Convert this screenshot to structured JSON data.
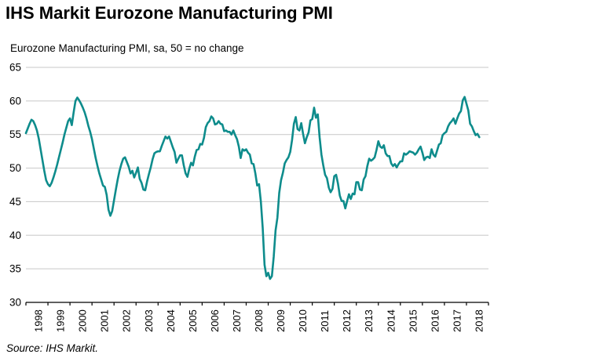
{
  "header": {
    "title": "IHS Markit Eurozone Manufacturing PMI"
  },
  "chart": {
    "subtitle": "Eurozone Manufacturing PMI, sa, 50 = no change"
  },
  "chart_data": {
    "type": "line",
    "title": "Eurozone Manufacturing PMI, sa, 50 = no change",
    "xlabel": "",
    "ylabel": "",
    "ylim": [
      30,
      65
    ],
    "ytick_step": 5,
    "ytick_labels": [
      "30",
      "35",
      "40",
      "45",
      "50",
      "55",
      "60",
      "65"
    ],
    "grid": "horizontal-only",
    "legend": "none",
    "x_tick_years": [
      "1998",
      "1999",
      "2000",
      "2001",
      "2002",
      "2003",
      "2004",
      "2005",
      "2006",
      "2007",
      "2008",
      "2009",
      "2010",
      "2011",
      "2012",
      "2013",
      "2014",
      "2015",
      "2016",
      "2017",
      "2018"
    ],
    "frequency": "monthly",
    "x_start": "1998-01",
    "x_end": "2018-08",
    "series": [
      {
        "name": "Eurozone Manufacturing PMI",
        "color": "#0E8C8C",
        "values": [
          55.2,
          55.9,
          56.6,
          57.2,
          57.0,
          56.4,
          55.6,
          54.4,
          52.8,
          51.2,
          49.6,
          48.2,
          47.6,
          47.3,
          47.8,
          48.6,
          49.5,
          50.5,
          51.6,
          52.7,
          53.8,
          55.0,
          56.0,
          57.0,
          57.4,
          56.4,
          58.3,
          60.0,
          60.5,
          60.1,
          59.6,
          59.0,
          58.3,
          57.4,
          56.3,
          55.4,
          54.3,
          52.9,
          51.5,
          50.3,
          49.2,
          48.3,
          47.4,
          47.2,
          46.0,
          43.8,
          42.9,
          43.6,
          45.2,
          46.8,
          48.3,
          49.6,
          50.6,
          51.4,
          51.6,
          50.9,
          50.2,
          49.2,
          49.6,
          48.6,
          49.3,
          50.1,
          48.4,
          47.8,
          46.8,
          46.7,
          48.0,
          49.1,
          50.1,
          51.3,
          52.2,
          52.4,
          52.5,
          52.5,
          53.3,
          54.0,
          54.7,
          54.4,
          54.7,
          53.9,
          53.1,
          52.4,
          50.8,
          51.4,
          51.9,
          51.9,
          50.4,
          49.2,
          48.7,
          49.9,
          50.8,
          50.4,
          51.7,
          52.7,
          52.8,
          53.6,
          53.5,
          54.5,
          56.1,
          56.7,
          57.0,
          57.7,
          57.4,
          56.5,
          56.6,
          57.0,
          56.6,
          56.5,
          55.5,
          55.6,
          55.4,
          55.4,
          55.0,
          55.6,
          54.9,
          54.3,
          53.2,
          51.5,
          52.8,
          52.6,
          52.8,
          52.3,
          52.0,
          50.7,
          50.6,
          49.2,
          47.4,
          47.6,
          45.0,
          41.1,
          35.6,
          33.9,
          34.4,
          33.5,
          33.9,
          36.8,
          40.7,
          42.6,
          46.3,
          48.2,
          49.3,
          50.7,
          51.2,
          51.6,
          52.4,
          54.2,
          56.6,
          57.6,
          55.8,
          55.6,
          56.7,
          55.1,
          53.7,
          54.6,
          55.3,
          57.1,
          57.3,
          59.0,
          57.5,
          58.0,
          54.6,
          52.0,
          50.4,
          49.0,
          48.5,
          47.1,
          46.4,
          46.9,
          48.8,
          49.0,
          47.7,
          45.9,
          45.1,
          45.1,
          44.0,
          45.1,
          46.1,
          45.4,
          46.2,
          46.1,
          47.9,
          47.9,
          46.8,
          46.7,
          48.3,
          48.8,
          50.3,
          51.4,
          51.1,
          51.3,
          51.6,
          52.7,
          54.0,
          53.2,
          53.0,
          53.4,
          52.2,
          51.8,
          51.8,
          50.7,
          50.3,
          50.6,
          50.1,
          50.6,
          51.0,
          51.0,
          52.2,
          52.0,
          52.2,
          52.5,
          52.4,
          52.3,
          52.0,
          52.3,
          52.8,
          53.2,
          52.3,
          51.2,
          51.6,
          51.7,
          51.5,
          52.8,
          52.0,
          51.7,
          52.6,
          53.5,
          53.7,
          54.9,
          55.2,
          55.4,
          56.2,
          56.7,
          57.0,
          57.4,
          56.6,
          57.4,
          58.1,
          58.5,
          60.1,
          60.6,
          59.6,
          58.6,
          56.6,
          56.2,
          55.5,
          54.9,
          55.1,
          54.6
        ]
      }
    ]
  },
  "footer": {
    "source": "Source: IHS Markit."
  },
  "colors": {
    "line": "#0E8C8C",
    "grid": "#c7c7c7",
    "axis": "#000000",
    "text": "#000000",
    "background": "#ffffff"
  }
}
